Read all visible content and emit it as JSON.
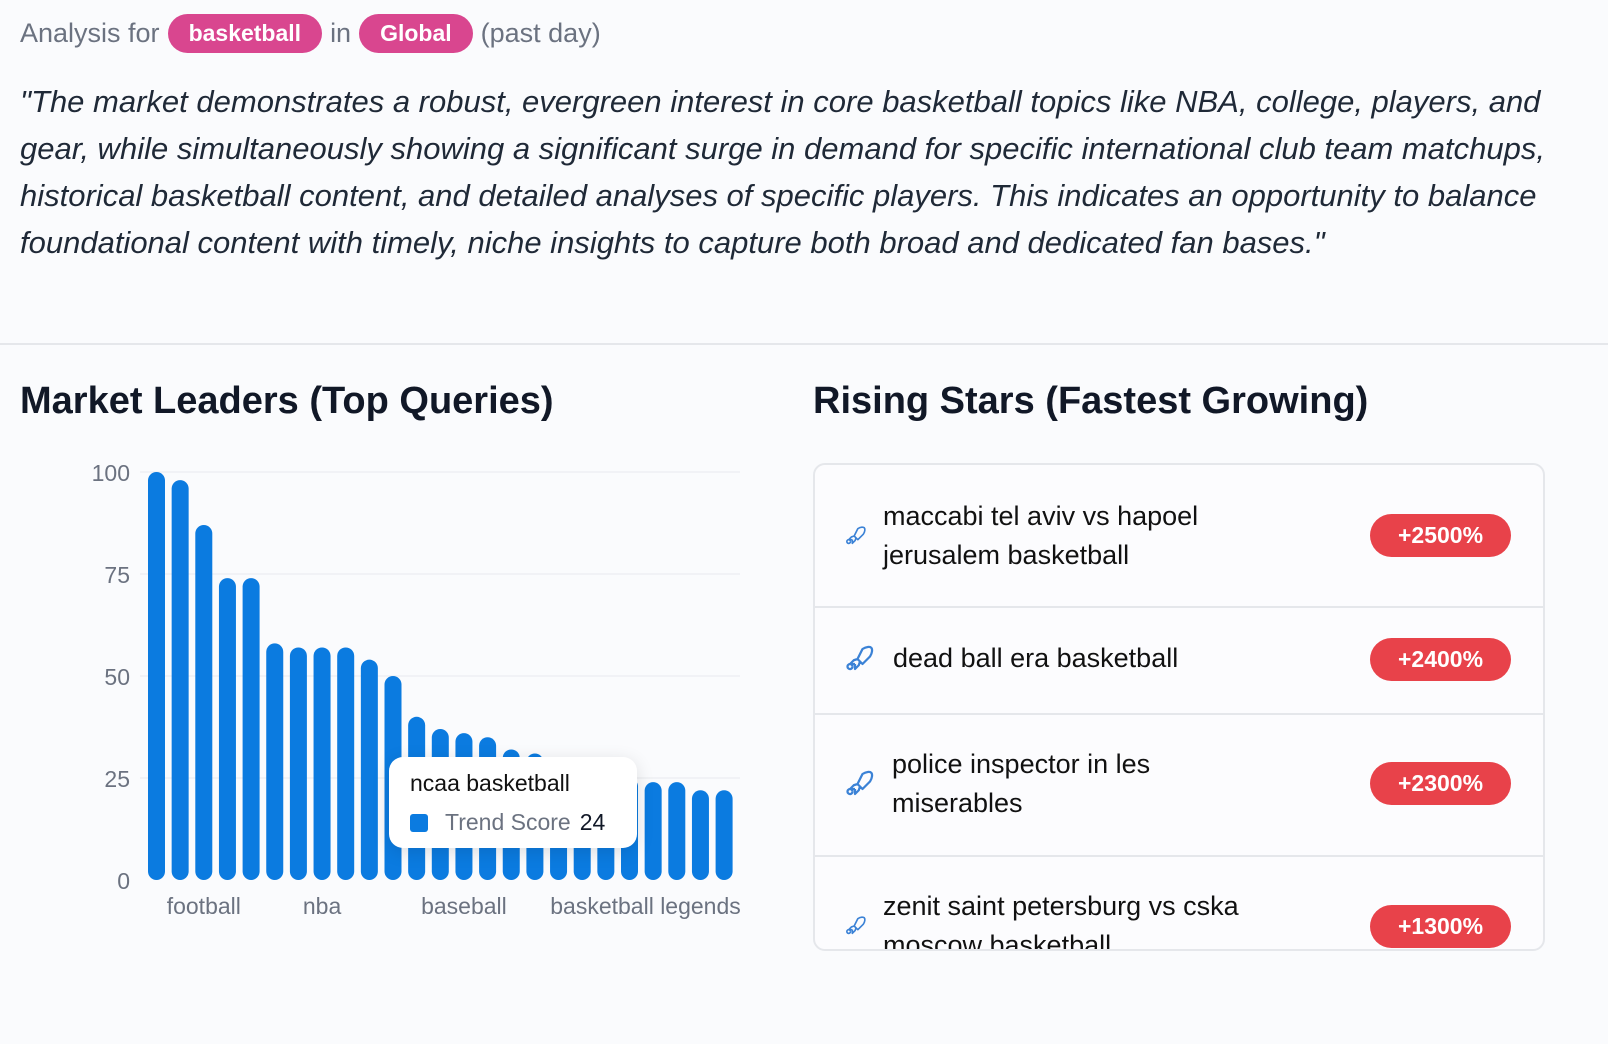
{
  "header": {
    "prefix": "Analysis for",
    "keyword": "basketball",
    "connector": "in",
    "region": "Global",
    "period": "(past day)"
  },
  "summary": "\"The market demonstrates a robust, evergreen interest in core basketball topics like NBA, college, players, and gear, while simultaneously showing a significant surge in demand for specific international club team matchups, historical basketball content, and detailed analyses of specific players. This indicates an opportunity to balance foundational content with timely, niche insights to capture both broad and dedicated fan bases.\"",
  "market_leaders": {
    "title": "Market Leaders (Top Queries)"
  },
  "rising_stars": {
    "title": "Rising Stars (Fastest Growing)",
    "items": [
      {
        "query": "maccabi tel aviv vs hapoel jerusalem basketball",
        "growth": "+2500%",
        "icon": "rocket-icon"
      },
      {
        "query": "dead ball era basketball",
        "growth": "+2400%",
        "icon": "rocket-icon"
      },
      {
        "query": "police inspector in les miserables",
        "growth": "+2300%",
        "icon": "rocket-icon"
      },
      {
        "query": "zenit saint petersburg vs cska moscow basketball",
        "growth": "+1300%",
        "icon": "rocket-icon"
      }
    ]
  },
  "colors": {
    "bar": "#0b7be0",
    "pill": "#d9468f",
    "badge": "#e8424a",
    "rocket": "#3b82d6"
  },
  "chart_data": {
    "type": "bar",
    "series_name": "Trend Score",
    "values": [
      100,
      98,
      87,
      74,
      74,
      58,
      57,
      57,
      57,
      54,
      50,
      40,
      37,
      36,
      35,
      32,
      31,
      30,
      28,
      26,
      25,
      24,
      24,
      22,
      22
    ],
    "x_tick_labels": [
      {
        "index": 2,
        "label": "football"
      },
      {
        "index": 7,
        "label": "nba"
      },
      {
        "index": 13,
        "label": "baseball"
      },
      {
        "index": 20,
        "label": "basketball legends"
      }
    ],
    "y_ticks": [
      0,
      25,
      50,
      75,
      100
    ],
    "ylim": [
      0,
      100
    ],
    "grid": "horizontal",
    "tooltip": {
      "title": "ncaa basketball",
      "label": "Trend Score",
      "value": "24"
    }
  }
}
